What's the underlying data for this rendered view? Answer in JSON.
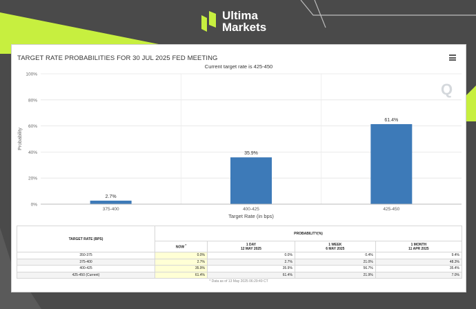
{
  "brand": {
    "line1": "Ultima",
    "line2": "Markets",
    "accent": "#c7ef3f"
  },
  "chart_data": {
    "type": "bar",
    "title": "TARGET RATE PROBABILITIES FOR 30 JUL 2025 FED MEETING",
    "subtitle": "Current target rate is 425-450",
    "xlabel": "Target Rate (in bps)",
    "ylabel": "Probability",
    "categories": [
      "375-400",
      "400-425",
      "425-450"
    ],
    "values": [
      2.7,
      35.9,
      61.4
    ],
    "data_labels": [
      "2.7%",
      "35.9%",
      "61.4%"
    ],
    "ylim": [
      0,
      100
    ],
    "yticks": [
      0,
      20,
      40,
      60,
      80,
      100
    ],
    "ytick_labels": [
      "0%",
      "20%",
      "40%",
      "60%",
      "80%",
      "100%"
    ],
    "bar_color": "#3d7ab8",
    "grid": true,
    "watermark": "Q"
  },
  "table": {
    "col_rate_header": "TARGET RATE (BPS)",
    "probability_header": "PROBABILITY(%)",
    "now_label": "NOW",
    "now_mark": "*",
    "columns": [
      {
        "line1": "1 DAY",
        "line2": "12 MAY 2025"
      },
      {
        "line1": "1 WEEK",
        "line2": "6 MAY 2025"
      },
      {
        "line1": "1 MONTH",
        "line2": "11 APR 2025"
      }
    ],
    "rows": [
      {
        "rate": "350-375",
        "now": "0.0%",
        "d1": "0.0%",
        "w1": "0.4%",
        "m1": "9.4%"
      },
      {
        "rate": "375-400",
        "now": "2.7%",
        "d1": "2.7%",
        "w1": "21.0%",
        "m1": "48.3%"
      },
      {
        "rate": "400-425",
        "now": "35.9%",
        "d1": "35.9%",
        "w1": "56.7%",
        "m1": "35.4%"
      },
      {
        "rate": "425-450 (Current)",
        "now": "61.4%",
        "d1": "61.4%",
        "w1": "21.9%",
        "m1": "7.0%"
      }
    ],
    "note": "* Data as of 13 May 2025 06:29:49 CT"
  }
}
